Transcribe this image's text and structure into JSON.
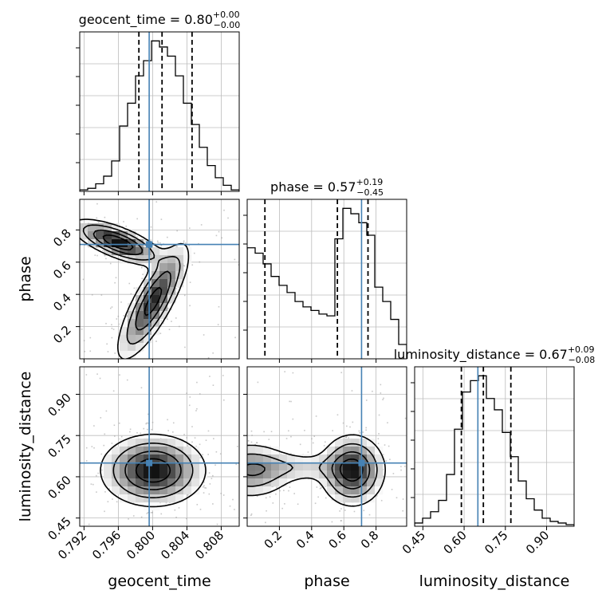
{
  "chart_data": {
    "type": "corner",
    "parameters": [
      {
        "name": "geocent_time",
        "axis_label": "geocent_time",
        "title": {
          "prefix": "geocent_time = ",
          "median": "0.80",
          "plus": "+0.00",
          "minus": "−0.00"
        },
        "range": [
          0.7915,
          0.8101
        ],
        "ticks": [
          0.792,
          0.796,
          0.8,
          0.804,
          0.808
        ],
        "tick_labels": [
          "0.792",
          "0.796",
          "0.800",
          "0.804",
          "0.808"
        ],
        "truth": 0.7996,
        "quantiles": [
          0.7984,
          0.8011,
          0.8046
        ],
        "hist_edges": [
          0.7915,
          0.79243,
          0.79336,
          0.79429,
          0.79522,
          0.79615,
          0.79708,
          0.79801,
          0.79894,
          0.79987,
          0.8008,
          0.80173,
          0.80266,
          0.80359,
          0.80452,
          0.80545,
          0.80638,
          0.80731,
          0.80824,
          0.80917,
          0.8101
        ],
        "hist_counts": [
          1,
          2,
          5,
          10,
          20,
          43,
          58,
          76,
          86,
          99,
          95,
          89,
          76,
          58,
          44,
          29,
          17,
          9,
          4,
          1
        ]
      },
      {
        "name": "phase",
        "axis_label": "phase",
        "title": {
          "prefix": "phase = ",
          "median": "0.57",
          "plus": "+0.19",
          "minus": "−0.45"
        },
        "range": [
          0.0,
          0.99
        ],
        "ticks": [
          0.2,
          0.4,
          0.6,
          0.8
        ],
        "tick_labels": [
          "0.2",
          "0.4",
          "0.6",
          "0.8"
        ],
        "truth": 0.71,
        "quantiles": [
          0.11,
          0.56,
          0.75
        ],
        "hist_edges": [
          0.0,
          0.0495,
          0.099,
          0.1485,
          0.198,
          0.2475,
          0.297,
          0.3465,
          0.396,
          0.4455,
          0.495,
          0.5445,
          0.594,
          0.6435,
          0.693,
          0.7425,
          0.792,
          0.8415,
          0.891,
          0.9405,
          0.99
        ],
        "hist_counts": [
          62,
          59,
          53,
          46,
          41,
          37,
          32,
          29,
          27,
          25,
          24,
          67,
          84,
          81,
          76,
          69,
          40,
          32,
          22,
          8
        ]
      },
      {
        "name": "luminosity_distance",
        "axis_label": "luminosity_distance",
        "title": {
          "prefix": "luminosity_distance = ",
          "median": "0.67",
          "plus": "+0.09",
          "minus": "−0.08"
        },
        "range": [
          0.42,
          1.0
        ],
        "ticks": [
          0.45,
          0.6,
          0.75,
          0.9
        ],
        "tick_labels": [
          "0.45",
          "0.60",
          "0.75",
          "0.90"
        ],
        "truth": 0.65,
        "quantiles": [
          0.59,
          0.67,
          0.77
        ],
        "hist_edges": [
          0.42,
          0.449,
          0.478,
          0.507,
          0.536,
          0.565,
          0.594,
          0.623,
          0.652,
          0.681,
          0.71,
          0.739,
          0.768,
          0.797,
          0.826,
          0.855,
          0.884,
          0.913,
          0.942,
          0.971,
          1.0
        ],
        "hist_counts": [
          2,
          5,
          9,
          16,
          32,
          60,
          83,
          90,
          93,
          79,
          72,
          58,
          43,
          28,
          17,
          10,
          5,
          3,
          2,
          1
        ]
      }
    ],
    "grid": true
  }
}
